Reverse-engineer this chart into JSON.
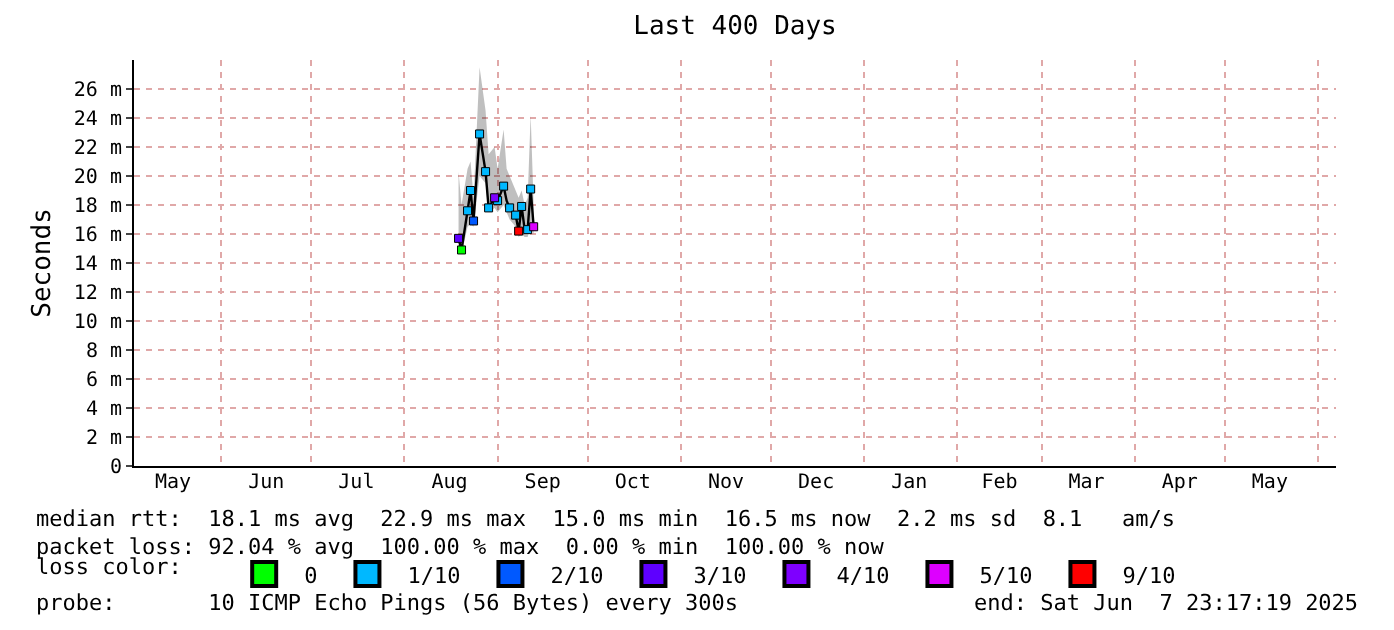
{
  "chart_data": {
    "type": "line",
    "title": "Last 400 Days",
    "ylabel": "Seconds",
    "legend_title": "loss color:",
    "xlim": [
      "2024-05-03",
      "2025-06-07"
    ],
    "xticks": [
      {
        "value": "2024-05-16",
        "label": "May"
      },
      {
        "value": "2024-06-01",
        "label": null
      },
      {
        "value": "2024-06-16",
        "label": "Jun"
      },
      {
        "value": "2024-07-01",
        "label": null
      },
      {
        "value": "2024-07-16",
        "label": "Jul"
      },
      {
        "value": "2024-08-01",
        "label": null
      },
      {
        "value": "2024-08-16",
        "label": "Aug"
      },
      {
        "value": "2024-09-01",
        "label": null
      },
      {
        "value": "2024-09-16",
        "label": "Sep"
      },
      {
        "value": "2024-10-01",
        "label": null
      },
      {
        "value": "2024-10-16",
        "label": "Oct"
      },
      {
        "value": "2024-11-01",
        "label": null
      },
      {
        "value": "2024-11-16",
        "label": "Nov"
      },
      {
        "value": "2024-12-01",
        "label": null
      },
      {
        "value": "2024-12-16",
        "label": "Dec"
      },
      {
        "value": "2025-01-01",
        "label": null
      },
      {
        "value": "2025-01-16",
        "label": "Jan"
      },
      {
        "value": "2025-02-01",
        "label": null
      },
      {
        "value": "2025-02-15",
        "label": "Feb"
      },
      {
        "value": "2025-03-01",
        "label": null
      },
      {
        "value": "2025-03-16",
        "label": "Mar"
      },
      {
        "value": "2025-04-01",
        "label": null
      },
      {
        "value": "2025-04-16",
        "label": "Apr"
      },
      {
        "value": "2025-05-01",
        "label": null
      },
      {
        "value": "2025-05-16",
        "label": "May"
      },
      {
        "value": "2025-06-01",
        "label": null
      }
    ],
    "ylim": [
      0,
      28
    ],
    "yticks": [
      0,
      {
        "value": 2,
        "label": "2 m"
      },
      {
        "value": 4,
        "label": "4 m"
      },
      {
        "value": 6,
        "label": "6 m"
      },
      {
        "value": 8,
        "label": "8 m"
      },
      {
        "value": 10,
        "label": "10 m"
      },
      {
        "value": 12,
        "label": "12 m"
      },
      {
        "value": 14,
        "label": "14 m"
      },
      {
        "value": 16,
        "label": "16 m"
      },
      {
        "value": 18,
        "label": "18 m"
      },
      {
        "value": 20,
        "label": "20 m"
      },
      {
        "value": 22,
        "label": "22 m"
      },
      {
        "value": 24,
        "label": "24 m"
      },
      {
        "value": 26,
        "label": "26 m"
      }
    ],
    "grid": true,
    "legend": "bottom",
    "series": [
      {
        "color": "#000000",
        "marker": "none",
        "x": [
          "2024-08-19",
          "2024-08-20",
          "2024-08-22",
          "2024-08-23",
          "2024-08-24",
          "2024-08-26",
          "2024-08-28",
          "2024-08-29",
          "2024-08-31",
          "2024-09-01",
          "2024-09-03",
          "2024-09-04",
          "2024-09-05",
          "2024-09-07",
          "2024-09-08",
          "2024-09-09",
          "2024-09-10",
          "2024-09-11",
          "2024-09-12",
          "2024-09-13"
        ],
        "values": [
          15.7,
          14.9,
          17.6,
          19.0,
          16.9,
          22.9,
          20.3,
          17.8,
          18.5,
          18.3,
          19.3,
          18.3,
          17.8,
          17.3,
          16.2,
          17.9,
          16.3,
          16.3,
          19.1,
          16.5
        ],
        "lower": [
          14.8,
          14.6,
          16.5,
          16.7,
          16.5,
          20.0,
          19.5,
          17.5,
          17.8,
          17.5,
          18.0,
          17.5,
          17.0,
          16.5,
          15.8,
          16.0,
          15.8,
          15.8,
          16.5,
          16.0
        ],
        "upper": [
          20.3,
          18.0,
          20.5,
          21.0,
          18.5,
          27.5,
          24.5,
          21.5,
          22.0,
          20.5,
          23.2,
          20.5,
          20.0,
          19.0,
          18.5,
          19.0,
          18.0,
          18.5,
          24.2,
          18.0
        ]
      },
      {
        "type": "scatter",
        "name": "0",
        "color": "#00ff00",
        "marker": "square",
        "x": [
          "2024-08-20"
        ],
        "values": [
          14.9
        ]
      },
      {
        "type": "scatter",
        "name": "1/10",
        "color": "#00b8ff",
        "marker": "square",
        "x": [
          "2024-08-22",
          "2024-08-23",
          "2024-08-26",
          "2024-08-28",
          "2024-08-29",
          "2024-09-01",
          "2024-09-03",
          "2024-09-05",
          "2024-09-07",
          "2024-09-09",
          "2024-09-11",
          "2024-09-12"
        ],
        "values": [
          17.6,
          19.0,
          22.9,
          20.3,
          17.8,
          18.3,
          19.3,
          17.8,
          17.3,
          17.9,
          16.3,
          19.1
        ]
      },
      {
        "type": "scatter",
        "name": "2/10",
        "color": "#0059ff",
        "marker": "square",
        "x": [
          "2024-08-24"
        ],
        "values": [
          16.9
        ]
      },
      {
        "type": "scatter",
        "name": "3/10",
        "color": "#5e00ff",
        "marker": "square",
        "x": [
          "2024-08-19"
        ],
        "values": [
          15.7
        ]
      },
      {
        "type": "scatter",
        "name": "4/10",
        "color": "#7e00ff",
        "marker": "square",
        "x": [
          "2024-08-31"
        ],
        "values": [
          18.5
        ]
      },
      {
        "type": "scatter",
        "name": "5/10",
        "color": "#dd00ff",
        "marker": "square",
        "x": [
          "2024-09-13"
        ],
        "values": [
          16.5
        ]
      },
      {
        "type": "scatter",
        "name": "9/10",
        "color": "#ff0000",
        "marker": "square",
        "x": [
          "2024-09-08"
        ],
        "values": [
          16.2
        ]
      }
    ],
    "annotations": [
      "median rtt:  18.1 ms avg  22.9 ms max  15.0 ms min  16.5 ms now  2.2 ms sd  8.1   am/s",
      "packet loss: 92.04 % avg  100.00 % max  0.00 % min  100.00 % now",
      "probe:       10 ICMP Echo Pings (56 Bytes) every 300s",
      "end: Sat Jun  7 23:17:19 2025"
    ]
  }
}
